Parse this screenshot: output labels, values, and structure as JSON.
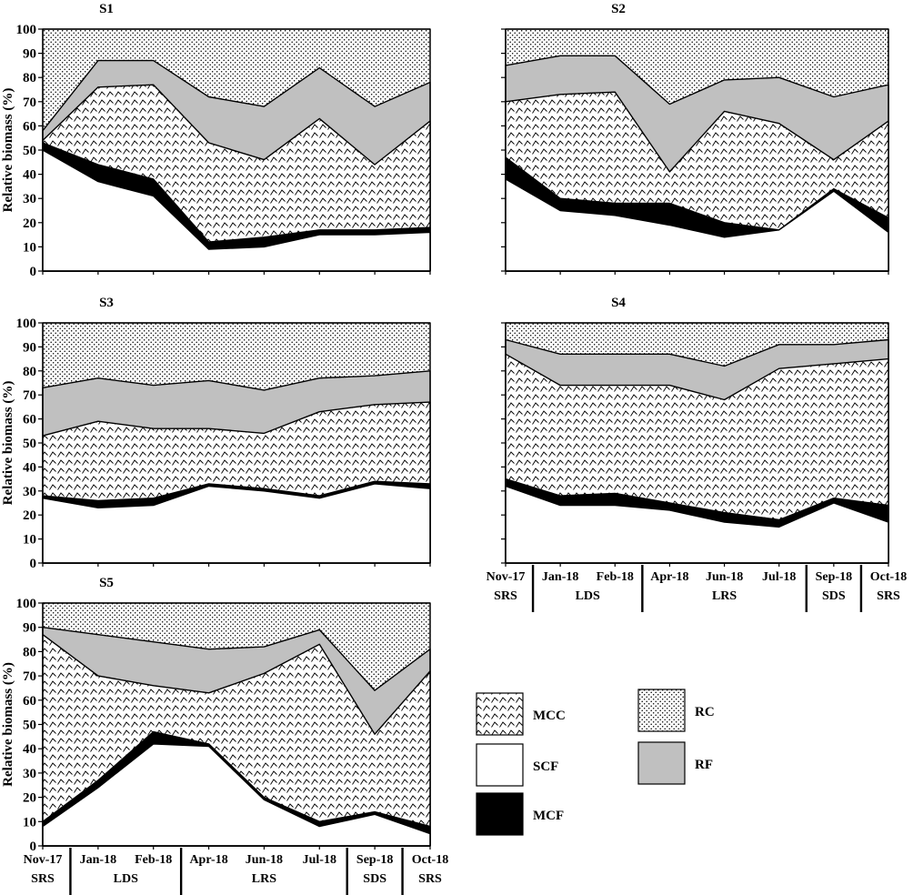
{
  "figure": {
    "y_label": "Relative biomass (%)",
    "y_ticks": [
      "0",
      "10",
      "20",
      "30",
      "40",
      "50",
      "60",
      "70",
      "80",
      "90",
      "100"
    ],
    "x_categories": [
      "Nov-17",
      "Jan-18",
      "Feb-18",
      "Apr-18",
      "Jun-18",
      "Jul-18",
      "Sep-18",
      "Oct-18"
    ],
    "seasons": [
      {
        "label": "SRS",
        "from": 0,
        "to": 0
      },
      {
        "label": "LDS",
        "from": 1,
        "to": 2
      },
      {
        "label": "LRS",
        "from": 3,
        "to": 5
      },
      {
        "label": "SDS",
        "from": 6,
        "to": 6
      },
      {
        "label": "SRS",
        "from": 7,
        "to": 7
      }
    ],
    "legend": [
      {
        "key": "MCC",
        "label": "MCC",
        "pattern": "wave"
      },
      {
        "key": "SCF",
        "label": "SCF",
        "pattern": "white"
      },
      {
        "key": "MCF",
        "label": "MCF",
        "pattern": "black"
      },
      {
        "key": "RC",
        "label": "RC",
        "pattern": "dots"
      },
      {
        "key": "RF",
        "label": "RF",
        "pattern": "gray"
      }
    ],
    "colors": {
      "RF": "#c0c0c0",
      "MCF": "#000000",
      "SCF": "#ffffff",
      "RC_bg": "#ffffff",
      "pattern_ink": "#000000"
    }
  },
  "chart_data": [
    {
      "type": "area",
      "title": "S1",
      "stacking": "cumulative",
      "categories": [
        "Nov-17",
        "Jan-18",
        "Feb-18",
        "Apr-18",
        "Jun-18",
        "Jul-18",
        "Sep-18",
        "Oct-18"
      ],
      "ylim": [
        0,
        100
      ],
      "ylabel": "Relative biomass (%)",
      "series": [
        {
          "name": "SCF",
          "top": [
            50,
            37,
            31,
            9,
            10,
            15,
            15,
            16
          ]
        },
        {
          "name": "MCF",
          "top": [
            53,
            44,
            38,
            12,
            14,
            17,
            17,
            18
          ]
        },
        {
          "name": "MCC",
          "top": [
            54,
            76,
            77,
            53,
            46,
            63,
            44,
            62
          ]
        },
        {
          "name": "RF",
          "top": [
            58,
            87,
            87,
            72,
            68,
            84,
            68,
            78
          ]
        },
        {
          "name": "RC",
          "top": [
            100,
            100,
            100,
            100,
            100,
            100,
            100,
            100
          ]
        }
      ]
    },
    {
      "type": "area",
      "title": "S2",
      "stacking": "cumulative",
      "categories": [
        "Nov-17",
        "Jan-18",
        "Feb-18",
        "Apr-18",
        "Jun-18",
        "Jul-18",
        "Sep-18",
        "Oct-18"
      ],
      "ylim": [
        0,
        100
      ],
      "series": [
        {
          "name": "SCF",
          "top": [
            38,
            25,
            23,
            19,
            14,
            17,
            33,
            16
          ]
        },
        {
          "name": "MCF",
          "top": [
            47,
            30,
            28,
            28,
            20,
            17,
            34,
            22
          ]
        },
        {
          "name": "MCC",
          "top": [
            70,
            73,
            74,
            41,
            66,
            61,
            46,
            62
          ]
        },
        {
          "name": "RF",
          "top": [
            85,
            89,
            89,
            69,
            79,
            80,
            72,
            77
          ]
        },
        {
          "name": "RC",
          "top": [
            100,
            100,
            100,
            100,
            100,
            100,
            100,
            100
          ]
        }
      ]
    },
    {
      "type": "area",
      "title": "S3",
      "stacking": "cumulative",
      "categories": [
        "Nov-17",
        "Jan-18",
        "Feb-18",
        "Apr-18",
        "Jun-18",
        "Jul-18",
        "Sep-18",
        "Oct-18"
      ],
      "ylim": [
        0,
        100
      ],
      "ylabel": "Relative biomass (%)",
      "series": [
        {
          "name": "SCF",
          "top": [
            27,
            23,
            24,
            32,
            30,
            27,
            33,
            31
          ]
        },
        {
          "name": "MCF",
          "top": [
            28,
            26,
            27,
            33,
            31,
            28,
            34,
            33
          ]
        },
        {
          "name": "MCC",
          "top": [
            53,
            59,
            56,
            56,
            54,
            63,
            66,
            67
          ]
        },
        {
          "name": "RF",
          "top": [
            73,
            77,
            74,
            76,
            72,
            77,
            78,
            80
          ]
        },
        {
          "name": "RC",
          "top": [
            100,
            100,
            100,
            100,
            100,
            100,
            100,
            100
          ]
        }
      ]
    },
    {
      "type": "area",
      "title": "S4",
      "stacking": "cumulative",
      "categories": [
        "Nov-17",
        "Jan-18",
        "Feb-18",
        "Apr-18",
        "Jun-18",
        "Jul-18",
        "Sep-18",
        "Oct-18"
      ],
      "ylim": [
        0,
        100
      ],
      "series": [
        {
          "name": "SCF",
          "top": [
            32,
            24,
            24,
            22,
            17,
            15,
            25,
            17
          ]
        },
        {
          "name": "MCF",
          "top": [
            35,
            28,
            29,
            25,
            21,
            18,
            27,
            24
          ]
        },
        {
          "name": "MCC",
          "top": [
            87,
            74,
            74,
            74,
            68,
            81,
            83,
            85
          ]
        },
        {
          "name": "RF",
          "top": [
            93,
            87,
            87,
            87,
            82,
            91,
            91,
            93
          ]
        },
        {
          "name": "RC",
          "top": [
            100,
            100,
            100,
            100,
            100,
            100,
            100,
            100
          ]
        }
      ]
    },
    {
      "type": "area",
      "title": "S5",
      "stacking": "cumulative",
      "categories": [
        "Nov-17",
        "Jan-18",
        "Feb-18",
        "Apr-18",
        "Jun-18",
        "Jul-18",
        "Sep-18",
        "Oct-18"
      ],
      "ylim": [
        0,
        100
      ],
      "ylabel": "Relative biomass (%)",
      "series": [
        {
          "name": "SCF",
          "top": [
            8,
            24,
            42,
            41,
            19,
            8,
            13,
            5
          ]
        },
        {
          "name": "MCF",
          "top": [
            10,
            27,
            47,
            42,
            20,
            10,
            14,
            8
          ]
        },
        {
          "name": "MCC",
          "top": [
            87,
            70,
            66,
            63,
            71,
            83,
            46,
            72
          ]
        },
        {
          "name": "RF",
          "top": [
            90,
            87,
            84,
            81,
            82,
            89,
            64,
            81
          ]
        },
        {
          "name": "RC",
          "top": [
            100,
            100,
            100,
            100,
            100,
            100,
            100,
            100
          ]
        }
      ]
    }
  ]
}
